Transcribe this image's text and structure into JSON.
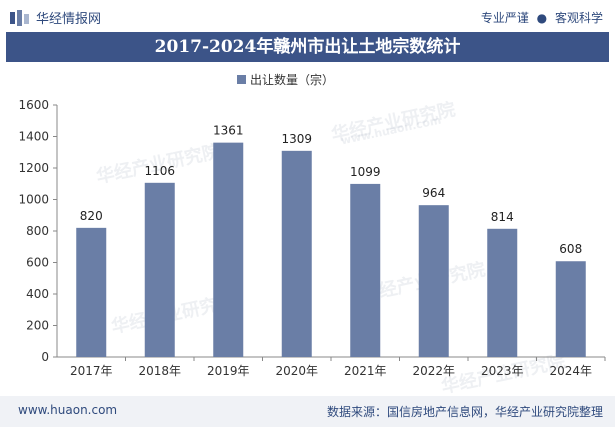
{
  "header": {
    "brand": "华经情报网",
    "slogan_left": "专业严谨",
    "slogan_sep": "●",
    "slogan_right": "客观科学"
  },
  "chart_data": {
    "type": "bar",
    "title": "2017-2024年赣州市出让土地宗数统计",
    "legend": "出让数量（宗）",
    "categories": [
      "2017年",
      "2018年",
      "2019年",
      "2020年",
      "2021年",
      "2022年",
      "2023年",
      "2024年"
    ],
    "values": [
      820,
      1106,
      1361,
      1309,
      1099,
      964,
      814,
      608
    ],
    "ylim": [
      0,
      1600
    ],
    "yticks": [
      0,
      200,
      400,
      600,
      800,
      1000,
      1200,
      1400,
      1600
    ],
    "bar_color": "#6a7ea6",
    "xlabel": "",
    "ylabel": ""
  },
  "watermark": {
    "brand": "华经产业研究院",
    "url": "www.huaon.com"
  },
  "footer": {
    "website": "www.huaon.com",
    "source": "数据来源：国信房地产信息网，华经产业研究院整理"
  }
}
